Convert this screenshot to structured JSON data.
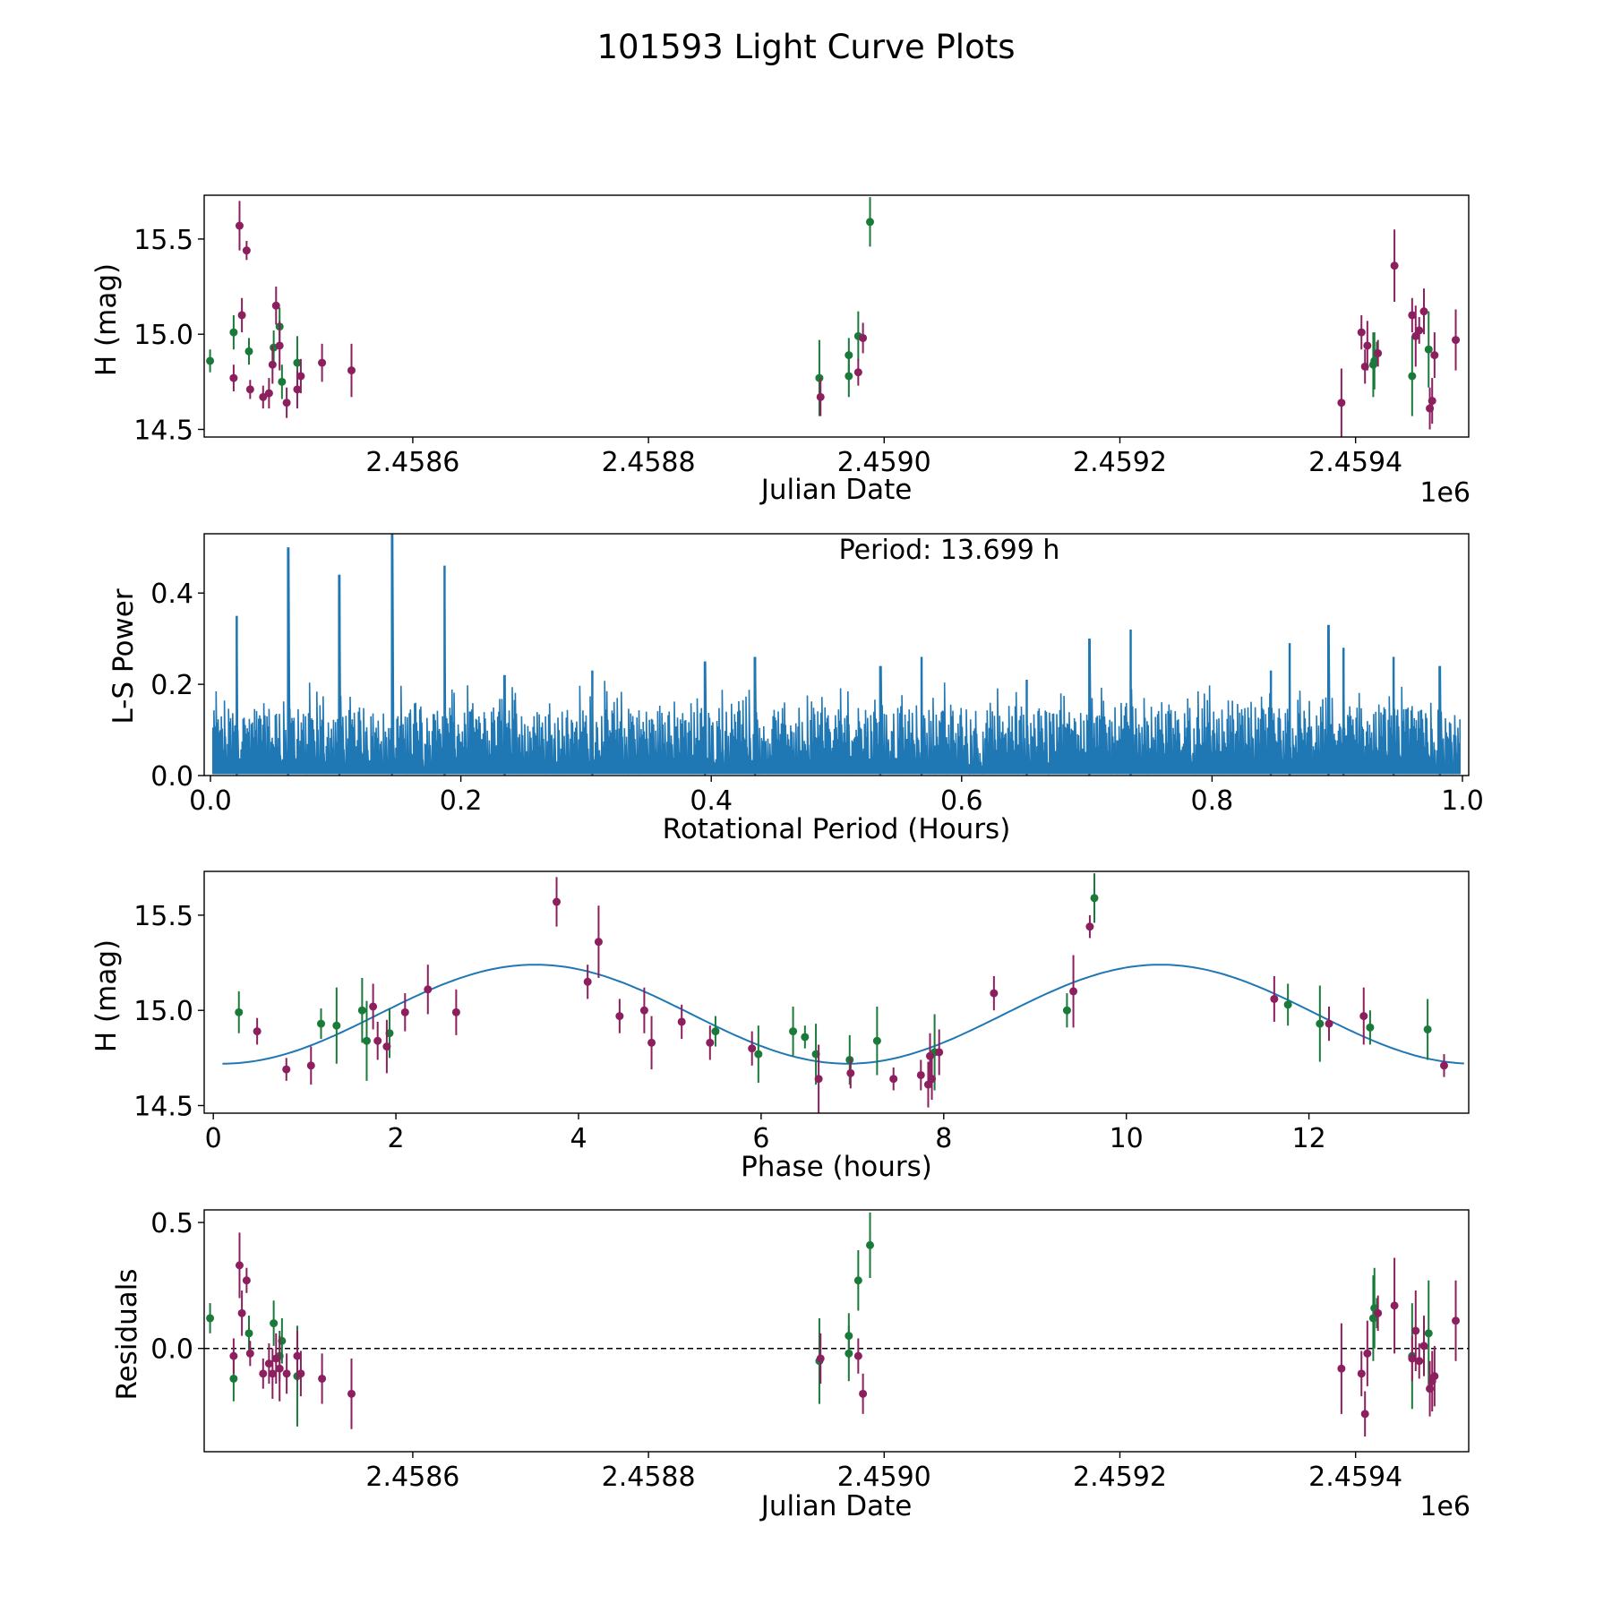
{
  "figure_title": "101593 Light Curve Plots",
  "colors": {
    "band_g": "#1a7a3a",
    "band_r": "#8c1f5e",
    "curve": "#1f77b4",
    "axis": "#000000"
  },
  "chart_data": [
    {
      "id": "lightcurve",
      "type": "scatter",
      "xlabel": "Julian Date",
      "ylabel": "H (mag)",
      "offset_text": "1e6",
      "xlim": [
        2458423,
        2459496
      ],
      "ylim": [
        14.46,
        15.73
      ],
      "xticks": [
        2.4586,
        2.4588,
        2.459,
        2.4592,
        2.4594
      ],
      "xtick_labels": [
        "2.4586",
        "2.4588",
        "2.4590",
        "2.4592",
        "2.4594"
      ],
      "yticks": [
        14.5,
        15.0,
        15.5
      ],
      "ytick_labels": [
        "14.5",
        "15.0",
        "15.5"
      ],
      "series": [
        {
          "name": "g",
          "color_key": "band_g",
          "points": [
            [
              2458428,
              14.86,
              0.06
            ],
            [
              2458448,
              15.01,
              0.09
            ],
            [
              2458461,
              14.91,
              0.07
            ],
            [
              2458482,
              14.93,
              0.09
            ],
            [
              2458487,
              15.04,
              0.1
            ],
            [
              2458489,
              14.75,
              0.09
            ],
            [
              2458502,
              14.85,
              0.14
            ],
            [
              2458945,
              14.77,
              0.2
            ],
            [
              2458970,
              14.89,
              0.09
            ],
            [
              2458970,
              14.78,
              0.11
            ],
            [
              2458978,
              14.99,
              0.13
            ],
            [
              2458988,
              15.59,
              0.13
            ],
            [
              2459415,
              14.84,
              0.17
            ],
            [
              2459418,
              14.9,
              0.06
            ],
            [
              2459416,
              14.86,
              0.15
            ],
            [
              2459448,
              14.78,
              0.21
            ],
            [
              2459462,
              14.92,
              0.2
            ]
          ]
        },
        {
          "name": "r",
          "color_key": "band_r",
          "points": [
            [
              2458448,
              14.77,
              0.07
            ],
            [
              2458453,
              15.57,
              0.13
            ],
            [
              2458455,
              15.1,
              0.09
            ],
            [
              2458459,
              15.44,
              0.05
            ],
            [
              2458462,
              14.71,
              0.05
            ],
            [
              2458473,
              14.67,
              0.06
            ],
            [
              2458478,
              14.69,
              0.08
            ],
            [
              2458481,
              14.84,
              0.1
            ],
            [
              2458484,
              15.15,
              0.1
            ],
            [
              2458487,
              14.94,
              0.13
            ],
            [
              2458493,
              14.64,
              0.08
            ],
            [
              2458502,
              14.71,
              0.1
            ],
            [
              2458505,
              14.78,
              0.09
            ],
            [
              2458523,
              14.85,
              0.1
            ],
            [
              2458548,
              14.81,
              0.14
            ],
            [
              2458946,
              14.67,
              0.1
            ],
            [
              2458978,
              14.8,
              0.07
            ],
            [
              2458982,
              14.98,
              0.08
            ],
            [
              2459388,
              14.64,
              0.18
            ],
            [
              2459405,
              15.01,
              0.09
            ],
            [
              2459408,
              14.83,
              0.09
            ],
            [
              2459410,
              14.94,
              0.13
            ],
            [
              2459419,
              14.9,
              0.07
            ],
            [
              2459433,
              15.36,
              0.19
            ],
            [
              2459448,
              15.1,
              0.09
            ],
            [
              2459451,
              14.99,
              0.16
            ],
            [
              2459454,
              15.02,
              0.07
            ],
            [
              2459458,
              15.12,
              0.12
            ],
            [
              2459463,
              14.61,
              0.11
            ],
            [
              2459465,
              14.65,
              0.12
            ],
            [
              2459467,
              14.89,
              0.12
            ],
            [
              2459485,
              14.97,
              0.16
            ]
          ]
        }
      ]
    },
    {
      "id": "periodogram",
      "type": "line",
      "xlabel": "Rotational Period (Hours)",
      "ylabel": "L-S Power",
      "annotation": "Period: 13.699 h",
      "xlim": [
        -0.005,
        1.005
      ],
      "ylim": [
        0.0,
        0.53
      ],
      "xticks": [
        0.0,
        0.2,
        0.4,
        0.6,
        0.8,
        1.0
      ],
      "xtick_labels": [
        "0.0",
        "0.2",
        "0.4",
        "0.6",
        "0.8",
        "1.0"
      ],
      "yticks": [
        0.0,
        0.2,
        0.4
      ],
      "ytick_labels": [
        "0.0",
        "0.2",
        "0.4"
      ],
      "noise_baseline": 0.13,
      "peaks": [
        [
          0.021,
          0.35
        ],
        [
          0.062,
          0.5
        ],
        [
          0.103,
          0.44
        ],
        [
          0.145,
          0.53
        ],
        [
          0.187,
          0.46
        ],
        [
          0.235,
          0.22
        ],
        [
          0.305,
          0.23
        ],
        [
          0.395,
          0.25
        ],
        [
          0.435,
          0.26
        ],
        [
          0.535,
          0.24
        ],
        [
          0.568,
          0.26
        ],
        [
          0.652,
          0.21
        ],
        [
          0.702,
          0.3
        ],
        [
          0.735,
          0.32
        ],
        [
          0.847,
          0.23
        ],
        [
          0.862,
          0.29
        ],
        [
          0.893,
          0.33
        ],
        [
          0.905,
          0.28
        ],
        [
          0.945,
          0.26
        ],
        [
          0.982,
          0.24
        ]
      ]
    },
    {
      "id": "phased",
      "type": "scatter",
      "xlabel": "Phase (hours)",
      "ylabel": "H (mag)",
      "xlim": [
        -0.1,
        13.75
      ],
      "ylim": [
        14.46,
        15.73
      ],
      "xticks": [
        0,
        2,
        4,
        6,
        8,
        10,
        12
      ],
      "xtick_labels": [
        "0",
        "2",
        "4",
        "6",
        "8",
        "10",
        "12"
      ],
      "yticks": [
        14.5,
        15.0,
        15.5
      ],
      "ytick_labels": [
        "14.5",
        "15.0",
        "15.5"
      ],
      "model": {
        "mean": 14.98,
        "amplitude": 0.26,
        "period_hours": 13.699,
        "minimum_at": 0.1
      },
      "series": [
        {
          "name": "g",
          "color_key": "band_g",
          "points": [
            [
              0.28,
              14.99,
              0.11
            ],
            [
              1.18,
              14.93,
              0.08
            ],
            [
              1.35,
              14.92,
              0.2
            ],
            [
              1.63,
              15.0,
              0.17
            ],
            [
              1.68,
              14.84,
              0.21
            ],
            [
              1.93,
              14.88,
              0.13
            ],
            [
              5.5,
              14.89,
              0.08
            ],
            [
              5.97,
              14.77,
              0.15
            ],
            [
              6.35,
              14.89,
              0.13
            ],
            [
              6.48,
              14.86,
              0.06
            ],
            [
              6.6,
              14.77,
              0.16
            ],
            [
              6.97,
              14.74,
              0.13
            ],
            [
              7.27,
              14.84,
              0.18
            ],
            [
              7.9,
              14.78,
              0.2
            ],
            [
              9.35,
              15.0,
              0.09
            ],
            [
              9.65,
              15.59,
              0.13
            ],
            [
              11.77,
              15.03,
              0.11
            ],
            [
              12.12,
              14.93,
              0.2
            ],
            [
              12.67,
              14.91,
              0.09
            ],
            [
              13.3,
              14.9,
              0.16
            ]
          ]
        },
        {
          "name": "r",
          "color_key": "band_r",
          "points": [
            [
              0.48,
              14.89,
              0.07
            ],
            [
              0.8,
              14.69,
              0.06
            ],
            [
              1.07,
              14.71,
              0.1
            ],
            [
              1.75,
              15.02,
              0.12
            ],
            [
              1.8,
              14.84,
              0.1
            ],
            [
              1.9,
              14.81,
              0.14
            ],
            [
              2.1,
              14.99,
              0.1
            ],
            [
              2.35,
              15.11,
              0.13
            ],
            [
              2.66,
              14.99,
              0.12
            ],
            [
              3.76,
              15.57,
              0.13
            ],
            [
              4.1,
              15.15,
              0.09
            ],
            [
              4.22,
              15.36,
              0.19
            ],
            [
              4.45,
              14.97,
              0.09
            ],
            [
              4.72,
              15.0,
              0.12
            ],
            [
              4.8,
              14.83,
              0.14
            ],
            [
              5.13,
              14.94,
              0.09
            ],
            [
              5.44,
              14.83,
              0.09
            ],
            [
              5.9,
              14.8,
              0.09
            ],
            [
              6.63,
              14.64,
              0.18
            ],
            [
              6.98,
              14.67,
              0.08
            ],
            [
              7.45,
              14.64,
              0.06
            ],
            [
              7.75,
              14.66,
              0.08
            ],
            [
              7.83,
              14.61,
              0.12
            ],
            [
              7.85,
              14.76,
              0.12
            ],
            [
              7.87,
              14.64,
              0.11
            ],
            [
              7.95,
              14.78,
              0.12
            ],
            [
              8.55,
              15.09,
              0.09
            ],
            [
              9.42,
              15.1,
              0.19
            ],
            [
              9.6,
              15.44,
              0.06
            ],
            [
              11.62,
              15.06,
              0.12
            ],
            [
              12.22,
              14.93,
              0.09
            ],
            [
              12.6,
              14.97,
              0.15
            ],
            [
              13.48,
              14.71,
              0.06
            ]
          ]
        }
      ]
    },
    {
      "id": "residuals",
      "type": "scatter",
      "xlabel": "Julian Date",
      "ylabel": "Residuals",
      "offset_text": "1e6",
      "reference_line": 0.0,
      "xlim": [
        2458423,
        2459496
      ],
      "ylim": [
        -0.41,
        0.55
      ],
      "xticks": [
        2.4586,
        2.4588,
        2.459,
        2.4592,
        2.4594
      ],
      "xtick_labels": [
        "2.4586",
        "2.4588",
        "2.4590",
        "2.4592",
        "2.4594"
      ],
      "yticks": [
        0.0,
        0.5
      ],
      "ytick_labels": [
        "0.0",
        "0.5"
      ],
      "series": [
        {
          "name": "g",
          "color_key": "band_g",
          "points": [
            [
              2458428,
              0.12,
              0.06
            ],
            [
              2458448,
              -0.12,
              0.09
            ],
            [
              2458461,
              0.06,
              0.07
            ],
            [
              2458482,
              0.1,
              0.09
            ],
            [
              2458487,
              -0.03,
              0.1
            ],
            [
              2458489,
              0.03,
              0.09
            ],
            [
              2458502,
              -0.11,
              0.2
            ],
            [
              2458945,
              -0.05,
              0.17
            ],
            [
              2458970,
              0.05,
              0.09
            ],
            [
              2458970,
              -0.02,
              0.11
            ],
            [
              2458978,
              0.27,
              0.12
            ],
            [
              2458988,
              0.41,
              0.13
            ],
            [
              2459415,
              0.12,
              0.17
            ],
            [
              2459418,
              0.14,
              0.06
            ],
            [
              2459416,
              0.16,
              0.16
            ],
            [
              2459448,
              -0.03,
              0.21
            ],
            [
              2459462,
              0.06,
              0.21
            ]
          ]
        },
        {
          "name": "r",
          "color_key": "band_r",
          "points": [
            [
              2458448,
              -0.03,
              0.07
            ],
            [
              2458453,
              0.33,
              0.13
            ],
            [
              2458455,
              0.14,
              0.09
            ],
            [
              2458459,
              0.27,
              0.05
            ],
            [
              2458462,
              -0.02,
              0.05
            ],
            [
              2458473,
              -0.1,
              0.06
            ],
            [
              2458478,
              -0.06,
              0.08
            ],
            [
              2458481,
              -0.1,
              0.1
            ],
            [
              2458484,
              -0.04,
              0.1
            ],
            [
              2458487,
              -0.08,
              0.13
            ],
            [
              2458493,
              -0.1,
              0.08
            ],
            [
              2458502,
              -0.03,
              0.1
            ],
            [
              2458505,
              -0.1,
              0.09
            ],
            [
              2458523,
              -0.12,
              0.1
            ],
            [
              2458548,
              -0.18,
              0.14
            ],
            [
              2458946,
              -0.04,
              0.1
            ],
            [
              2458978,
              -0.03,
              0.07
            ],
            [
              2458982,
              -0.18,
              0.08
            ],
            [
              2459388,
              -0.08,
              0.18
            ],
            [
              2459405,
              -0.1,
              0.09
            ],
            [
              2459408,
              -0.26,
              0.09
            ],
            [
              2459410,
              -0.02,
              0.13
            ],
            [
              2459419,
              0.14,
              0.07
            ],
            [
              2459433,
              0.17,
              0.19
            ],
            [
              2459448,
              -0.04,
              0.09
            ],
            [
              2459451,
              0.07,
              0.16
            ],
            [
              2459454,
              -0.05,
              0.07
            ],
            [
              2459458,
              0.01,
              0.12
            ],
            [
              2459463,
              -0.16,
              0.11
            ],
            [
              2459465,
              -0.13,
              0.12
            ],
            [
              2459467,
              -0.11,
              0.12
            ],
            [
              2459485,
              0.11,
              0.16
            ]
          ]
        }
      ]
    }
  ]
}
